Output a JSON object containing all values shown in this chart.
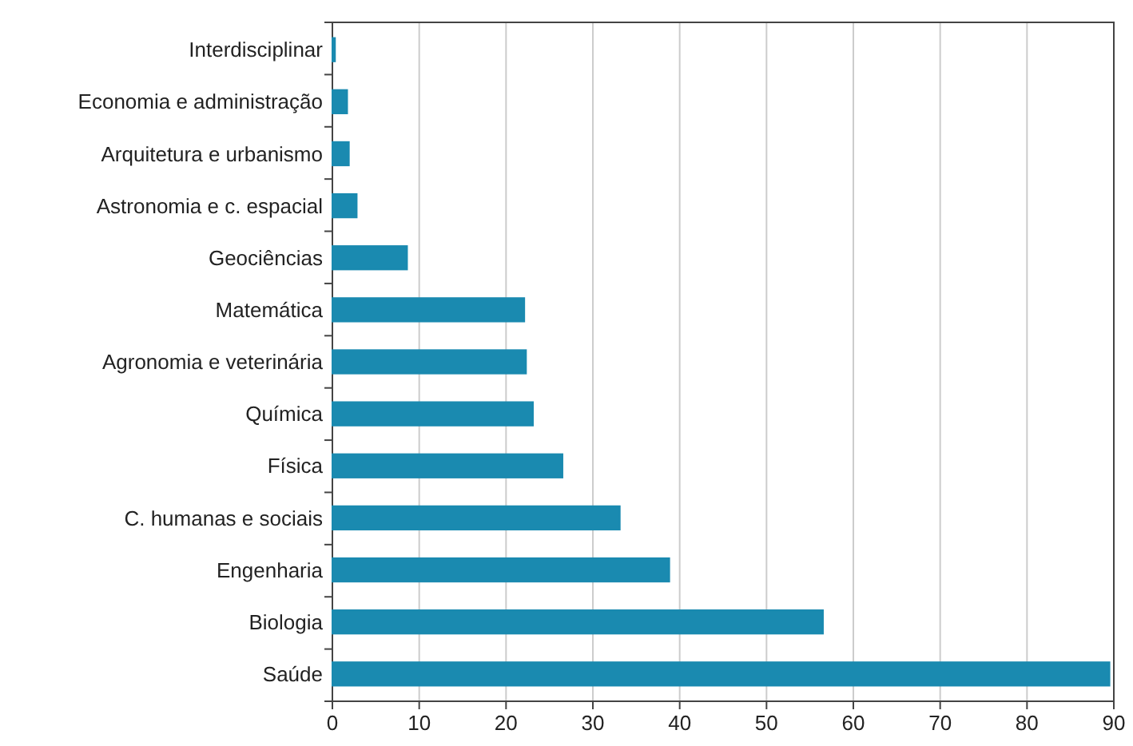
{
  "chart_data": {
    "type": "bar",
    "orientation": "horizontal",
    "categories": [
      "Interdisciplinar",
      "Economia e administração",
      "Arquitetura e urbanismo",
      "Astronomia e c. espacial",
      "Geociências",
      "Matemática",
      "Agronomia e veterinária",
      "Química",
      "Física",
      "C. humanas e sociais",
      "Engenharia",
      "Biologia",
      "Saúde"
    ],
    "values": [
      0.3,
      1.7,
      1.9,
      2.8,
      8.6,
      22.1,
      22.3,
      23.1,
      26.5,
      33.1,
      38.8,
      56.5,
      89.5
    ],
    "color": "#1a8ab0",
    "xlim": [
      0,
      90
    ],
    "xticks": [
      0,
      10,
      20,
      30,
      40,
      50,
      60,
      70,
      80,
      90
    ],
    "grid": "x"
  }
}
